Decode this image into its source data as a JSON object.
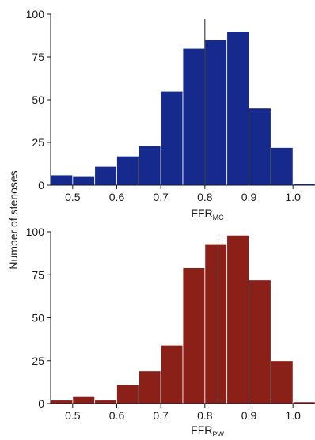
{
  "y_axis_label": "Number of stenoses",
  "chart_data": [
    {
      "type": "bar",
      "xlabel": {
        "main": "FFR",
        "sub": "MC"
      },
      "ylabel": "Number of stenoses",
      "xlim": [
        0.45,
        1.05
      ],
      "ylim": [
        0,
        100
      ],
      "xticks": [
        "0.5",
        "0.6",
        "0.7",
        "0.8",
        "0.9",
        "1.0"
      ],
      "yticks": [
        "0",
        "25",
        "50",
        "75",
        "100"
      ],
      "bin_edges": [
        0.45,
        0.5,
        0.55,
        0.6,
        0.65,
        0.7,
        0.75,
        0.8,
        0.85,
        0.9,
        0.95,
        1.0,
        1.05
      ],
      "values": [
        6,
        5,
        11,
        17,
        23,
        55,
        80,
        85,
        90,
        45,
        22,
        1
      ],
      "reference_line_x": 0.8,
      "bar_color": "#152a8c",
      "bar_edge_color": "#ffffff",
      "grid": false
    },
    {
      "type": "bar",
      "xlabel": {
        "main": "FFR",
        "sub": "PW"
      },
      "ylabel": "Number of stenoses",
      "xlim": [
        0.45,
        1.05
      ],
      "ylim": [
        0,
        100
      ],
      "xticks": [
        "0.5",
        "0.6",
        "0.7",
        "0.8",
        "0.9",
        "1.0"
      ],
      "yticks": [
        "0",
        "25",
        "50",
        "75",
        "100"
      ],
      "bin_edges": [
        0.45,
        0.5,
        0.55,
        0.6,
        0.65,
        0.7,
        0.75,
        0.8,
        0.85,
        0.9,
        0.95,
        1.0,
        1.05
      ],
      "values": [
        2,
        4,
        2,
        11,
        19,
        34,
        79,
        93,
        98,
        72,
        25,
        1
      ],
      "reference_line_x": 0.83,
      "bar_color": "#8b2019",
      "bar_edge_color": "#ffffff",
      "grid": false
    }
  ]
}
